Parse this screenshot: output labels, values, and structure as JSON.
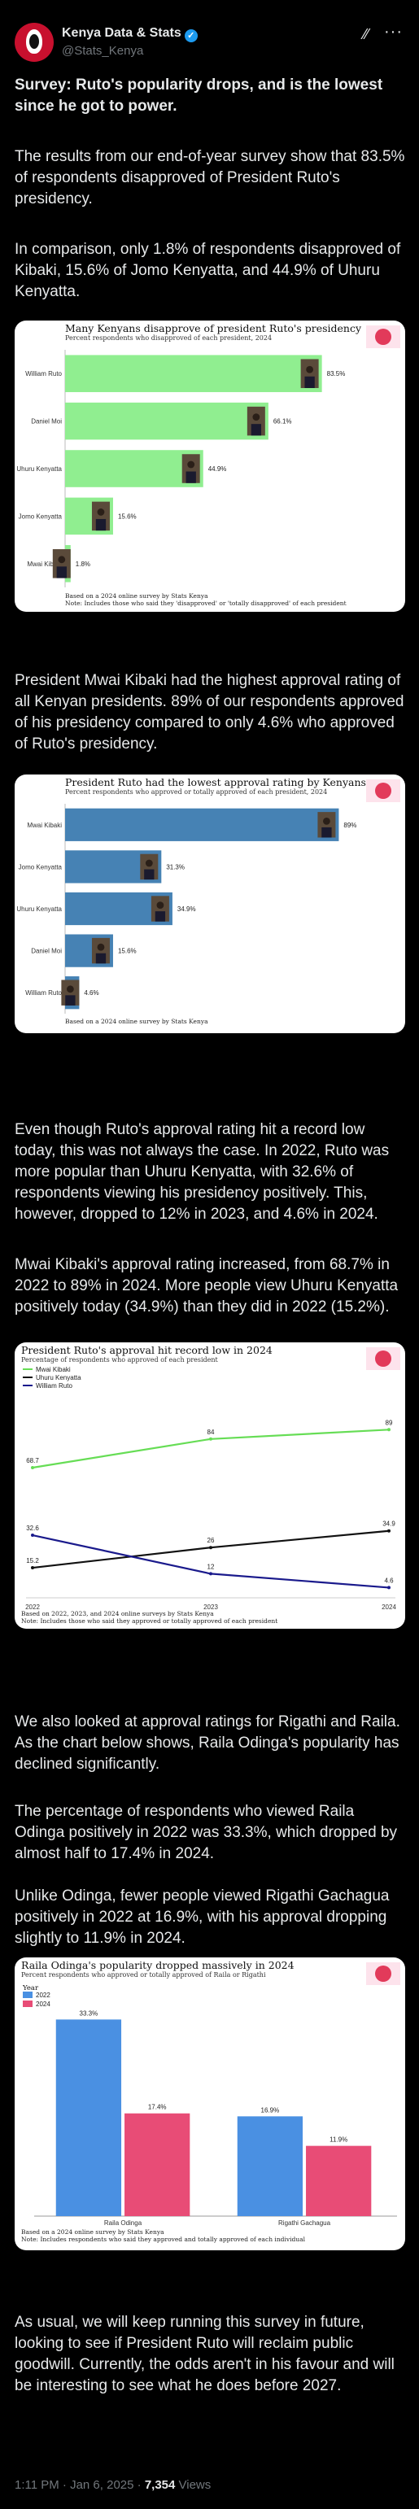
{
  "post": {
    "author_name": "Kenya Data & Stats",
    "handle": "@Stats_Kenya",
    "verified_glyph": "✓",
    "grok_glyph": "⁄⁄",
    "more_glyph": "···",
    "heading": "Survey: Ruto's popularity drops, and is the lowest since he got to power.",
    "p1": "The results from our end-of-year survey show that 83.5% of respondents disapproved of President Ruto's presidency.",
    "p2": "In comparison, only 1.8% of respondents disapproved of Kibaki, 15.6% of Jomo Kenyatta, and 44.9% of Uhuru Kenyatta.",
    "p3": "President Mwai Kibaki had the highest approval rating of all Kenyan presidents. 89% of our respondents approved of his presidency compared to only 4.6% who approved of Ruto's presidency.",
    "p4": "Even though Ruto's approval rating hit a record low today, this was not always the case. In 2022, Ruto was more popular than Uhuru Kenyatta, with 32.6% of respondents viewing his presidency positively. This, however, dropped to 12% in 2023, and 4.6% in 2024.",
    "p5": "Mwai Kibaki's approval rating increased, from 68.7% in 2022 to 89% in 2024. More people view Uhuru Kenyatta positively today (34.9%) than they did in 2022 (15.2%).",
    "p6": "We also looked at approval ratings for Rigathi and Raila. As the chart below shows, Raila Odinga's popularity has declined significantly.",
    "p7": "The percentage of respondents who viewed Raila Odinga positively in 2022 was 33.3%, which dropped by almost half to 17.4% in 2024.",
    "p8": "Unlike Odinga, fewer people viewed Rigathi Gachagua positively in 2022 at 16.9%, with his approval dropping slightly to 11.9% in 2024.",
    "p9": "As usual, we will keep running this survey in future, looking to see if President Ruto will reclaim public goodwill. Currently, the odds aren't in his favour and will be interesting to see what he does before 2027.",
    "time": "1:11 PM · Jan 6, 2025 · ",
    "views_count": "7,354",
    "views_label": " Views",
    "colors": {
      "green": "#90ee90",
      "steel": "#4682b4",
      "blue": "#4a90e2",
      "pink": "#e84c76",
      "line_green": "#66dd55",
      "line_navy": "#1a1a8c"
    }
  },
  "chart_data": [
    {
      "type": "bar",
      "orientation": "horizontal",
      "title": "Many Kenyans disapprove of president Ruto's presidency",
      "subtitle": "Percent respondents who disapproved of each president, 2024",
      "categories": [
        "William Ruto",
        "Daniel Moi",
        "Uhuru Kenyatta",
        "Jomo Kenyatta",
        "Mwai Kibaki"
      ],
      "values": [
        83.5,
        66.1,
        44.9,
        15.6,
        1.8
      ],
      "labels": [
        "83.5%",
        "66.1%",
        "44.9%",
        "15.6%",
        "1.8%"
      ],
      "xlim": [
        0,
        100
      ],
      "color": "#90ee90",
      "note1": "Based on a 2024 online survey by Stats Kenya",
      "note2": "Note: Includes those who said they 'disapproved' or 'totally disapproved' of each president"
    },
    {
      "type": "bar",
      "orientation": "horizontal",
      "title": "President Ruto had the lowest approval rating by Kenyans",
      "subtitle": "Percent respondents who approved or totally approved of each president, 2024",
      "categories": [
        "Mwai Kibaki",
        "Jomo Kenyatta",
        "Uhuru Kenyatta",
        "Daniel Moi",
        "William Ruto"
      ],
      "values": [
        89,
        31.3,
        34.9,
        15.6,
        4.6
      ],
      "labels": [
        "89%",
        "31.3%",
        "34.9%",
        "15.6%",
        "4.6%"
      ],
      "xlim": [
        0,
        100
      ],
      "color": "#4682b4",
      "note1": "Based on a 2024 online survey by Stats Kenya"
    },
    {
      "type": "line",
      "title": "President Ruto's approval hit record low in 2024",
      "subtitle": "Percentage of respondents who approved of each president",
      "x": [
        "2022",
        "2023",
        "2024"
      ],
      "ylim": [
        0,
        100
      ],
      "series": [
        {
          "name": "Mwai Kibaki",
          "values": [
            68.7,
            84,
            89
          ],
          "labels": [
            "68.7",
            "84",
            "89"
          ],
          "color": "#66dd55"
        },
        {
          "name": "Uhuru Kenyatta",
          "values": [
            15.2,
            26,
            34.9
          ],
          "labels": [
            "15.2",
            "26",
            "34.9"
          ],
          "color": "#111111"
        },
        {
          "name": "William Ruto",
          "values": [
            32.6,
            12,
            4.6
          ],
          "labels": [
            "32.6",
            "12",
            "4.6"
          ],
          "color": "#1a1a8c"
        }
      ],
      "note1": "Based on 2022, 2023, and 2024 online surveys by Stats Kenya",
      "note2": "Note: Includes those who said they approved or totally approved of each president"
    },
    {
      "type": "bar",
      "title": "Raila Odinga's popularity dropped massively in 2024",
      "subtitle": "Percent respondents who approved or totally approved of Raila or Rigathi",
      "legend_title": "Year",
      "categories": [
        "Raila Odinga",
        "Rigathi Gachagua"
      ],
      "series": [
        {
          "name": "2022",
          "values": [
            33.3,
            16.9
          ],
          "labels": [
            "33.3%",
            "16.9%"
          ],
          "color": "#4a90e2"
        },
        {
          "name": "2024",
          "values": [
            17.4,
            11.9
          ],
          "labels": [
            "17.4%",
            "11.9%"
          ],
          "color": "#e84c76"
        }
      ],
      "ylim": [
        0,
        35
      ],
      "note1": "Based on a 2024 online survey by Stats Kenya",
      "note2": "Note: Includes respondents who said they approved and totally approved of each individual"
    }
  ]
}
